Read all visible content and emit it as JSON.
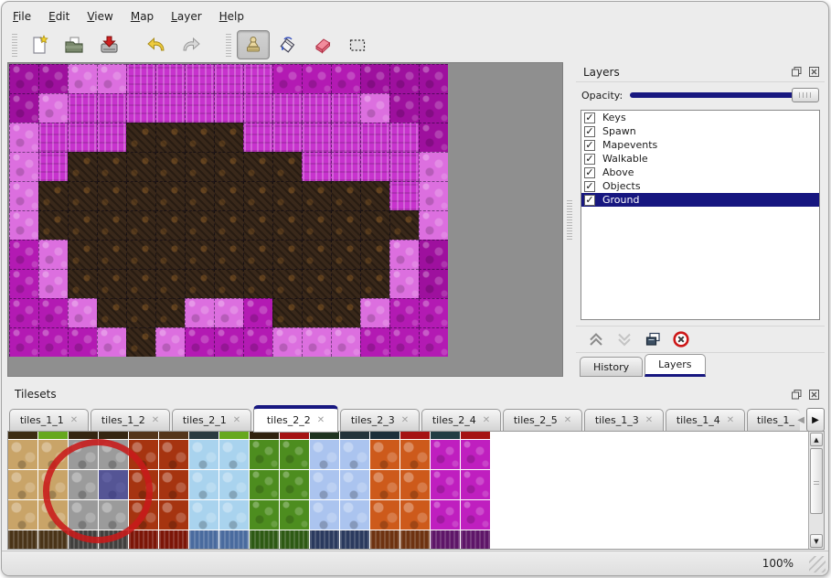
{
  "colors": {
    "accent_navy": "#181880",
    "selection_blue": "rgba(42,42,145,0.62)",
    "annotation_red": "#c81a1a",
    "canvas_gray": "#8f8f8f"
  },
  "menu": {
    "items": [
      "File",
      "Edit",
      "View",
      "Map",
      "Layer",
      "Help"
    ]
  },
  "toolbar": {
    "buttons": [
      {
        "name": "new-file"
      },
      {
        "name": "open-file"
      },
      {
        "name": "save-file"
      },
      {
        "name": "undo"
      },
      {
        "name": "redo"
      },
      {
        "name": "stamp-tool",
        "selected": true
      },
      {
        "name": "fill-tool"
      },
      {
        "name": "eraser-tool"
      },
      {
        "name": "rect-select-tool"
      }
    ]
  },
  "map": {
    "tile_size": 32,
    "palette": {
      "D": "#9e109e",
      "M": "#b31ab3",
      "P": "#c733cd",
      "L": "#dc6fdf",
      "B": "#39281a"
    },
    "grid": [
      "DDLLPPPPPMMMDDD",
      "DLPPPPPPPPPPLDD",
      "LPPPBBBBPPPPPPD",
      "LPBBBBBBBBPPPPL",
      "LBBBBBBBBBBBBPL",
      "LBBBBBBBBBBBBBL",
      "MLBBBBBBBBBBBLD",
      "MLBBBBBBBBBBBLD",
      "MMLBBBLLMBBBLMM",
      "MMMLBLMMMLLLMMM"
    ]
  },
  "layers_panel": {
    "title": "Layers",
    "opacity_label": "Opacity:",
    "check_glyph": "✓",
    "layers": [
      {
        "label": "Keys",
        "checked": true
      },
      {
        "label": "Spawn",
        "checked": true
      },
      {
        "label": "Mapevents",
        "checked": true
      },
      {
        "label": "Walkable",
        "checked": true
      },
      {
        "label": "Above",
        "checked": true
      },
      {
        "label": "Objects",
        "checked": true
      },
      {
        "label": "Ground",
        "checked": true,
        "selected": true
      }
    ],
    "buttons": [
      {
        "name": "raise-layer"
      },
      {
        "name": "lower-layer"
      },
      {
        "name": "duplicate-layer"
      },
      {
        "name": "delete-layer"
      }
    ],
    "tabs": [
      {
        "label": "History",
        "active": false
      },
      {
        "label": "Layers",
        "active": true
      }
    ]
  },
  "tilesets_panel": {
    "title": "Tilesets",
    "tab_close_glyph": "✕",
    "scroll_left_glyph": "◀",
    "scroll_right_glyph": "▶",
    "up_glyph": "▲",
    "down_glyph": "▼",
    "tabs": [
      {
        "label": "tiles_1_1"
      },
      {
        "label": "tiles_1_2"
      },
      {
        "label": "tiles_2_1"
      },
      {
        "label": "tiles_2_2",
        "active": true
      },
      {
        "label": "tiles_2_3"
      },
      {
        "label": "tiles_2_4"
      },
      {
        "label": "tiles_2_5"
      },
      {
        "label": "tiles_1_3"
      },
      {
        "label": "tiles_1_4"
      },
      {
        "label": "tiles_1_",
        "truncated": true
      }
    ],
    "grid": {
      "columns": 16,
      "top_strip_colors": [
        "#3c2c12",
        "#66a81e",
        "#352611",
        "#352611",
        "#54351a",
        "#54351a",
        "#2b3b40",
        "#66a81e",
        "#30220e",
        "#a51313",
        "#1e3320",
        "#23333a",
        "#1c2f3a",
        "#a51313",
        "#223d44",
        "#a51313"
      ],
      "column_families": [
        "tan",
        "tan",
        "gray",
        "gray",
        "lava",
        "lava",
        "ice",
        "ice",
        "green",
        "green",
        "crystal",
        "crystal",
        "orange",
        "orange",
        "magenta",
        "magenta"
      ],
      "families": {
        "tan": {
          "base": "#c9a468",
          "dark": "#4a3418"
        },
        "gray": {
          "base": "#9b9b9b",
          "dark": "#41403e"
        },
        "lava": {
          "base": "#a63410",
          "dark": "#7c1608"
        },
        "ice": {
          "base": "#a9d3ee",
          "dark": "#4a6b9e"
        },
        "green": {
          "base": "#4d8d1f",
          "dark": "#2e5a14"
        },
        "crystal": {
          "base": "#abc4ef",
          "dark": "#2b3a5e"
        },
        "orange": {
          "base": "#cd5a1b",
          "dark": "#6e3311"
        },
        "magenta": {
          "base": "#bf1fbf",
          "dark": "#5e1668"
        }
      },
      "selected_tile": {
        "col": 3,
        "row": 1
      }
    }
  },
  "status_bar": {
    "zoom_level": "100%"
  }
}
